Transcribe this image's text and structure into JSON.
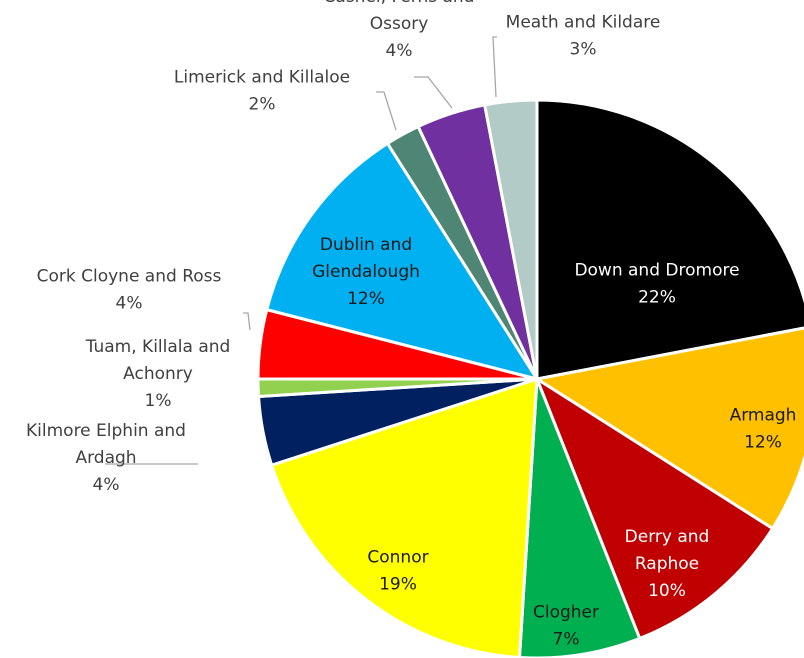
{
  "chart_data": {
    "type": "pie",
    "title": "",
    "slices": [
      {
        "label": "Down and Dromore",
        "lines": [
          "Down and Dromore"
        ],
        "value": 22,
        "pct": "22%",
        "color": "#000000",
        "text_color": "#ffffff",
        "label_pos": "inside"
      },
      {
        "label": "Armagh",
        "lines": [
          "Armagh"
        ],
        "value": 12,
        "pct": "12%",
        "color": "#ffc000",
        "text_color": "#1a1a1a",
        "label_pos": "inside"
      },
      {
        "label": "Derry and Raphoe",
        "lines": [
          "Derry and",
          "Raphoe"
        ],
        "value": 10,
        "pct": "10%",
        "color": "#c00000",
        "text_color": "#ffffff",
        "label_pos": "inside"
      },
      {
        "label": "Clogher",
        "lines": [
          "Clogher"
        ],
        "value": 7,
        "pct": "7%",
        "color": "#00b050",
        "text_color": "#1a1a1a",
        "label_pos": "inside"
      },
      {
        "label": "Connor",
        "lines": [
          "Connor"
        ],
        "value": 19,
        "pct": "19%",
        "color": "#ffff00",
        "text_color": "#1a1a1a",
        "label_pos": "inside"
      },
      {
        "label": "Kilmore Elphin and Ardagh",
        "lines": [
          "Kilmore Elphin and",
          "Ardagh"
        ],
        "value": 4,
        "pct": "4%",
        "color": "#002060",
        "text_color": "#404040",
        "label_pos": "outside"
      },
      {
        "label": "Tuam, Killala and Achonry",
        "lines": [
          "Tuam, Killala and",
          "Achonry"
        ],
        "value": 1,
        "pct": "1%",
        "color": "#92d050",
        "text_color": "#404040",
        "label_pos": "outside"
      },
      {
        "label": "Cork Cloyne and Ross",
        "lines": [
          "Cork Cloyne and Ross"
        ],
        "value": 4,
        "pct": "4%",
        "color": "#ff0000",
        "text_color": "#404040",
        "label_pos": "outside"
      },
      {
        "label": "Dublin and Glendalough",
        "lines": [
          "Dublin and",
          "Glendalough"
        ],
        "value": 12,
        "pct": "12%",
        "color": "#00b0f0",
        "text_color": "#1a1a1a",
        "label_pos": "inside"
      },
      {
        "label": "Limerick and Killaloe",
        "lines": [
          "Limerick and Killaloe"
        ],
        "value": 2,
        "pct": "2%",
        "color": "#4e8574",
        "text_color": "#404040",
        "label_pos": "outside"
      },
      {
        "label": "Cashel, Ferns and Ossory",
        "lines": [
          "Cashel, Ferns and",
          "Ossory"
        ],
        "value": 4,
        "pct": "4%",
        "color": "#7030a0",
        "text_color": "#404040",
        "label_pos": "outside"
      },
      {
        "label": "Meath and Kildare",
        "lines": [
          "Meath and Kildare"
        ],
        "value": 3,
        "pct": "3%",
        "color": "#b3cbc6",
        "text_color": "#404040",
        "label_pos": "outside"
      }
    ]
  }
}
